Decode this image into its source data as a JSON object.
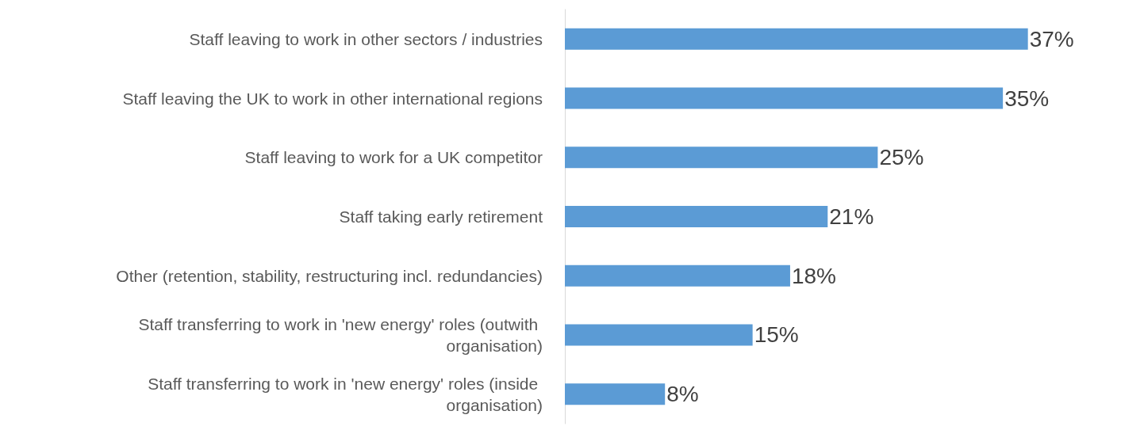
{
  "chart_data": {
    "type": "bar",
    "orientation": "horizontal",
    "categories": [
      "Staff leaving to work in other sectors / industries",
      "Staff leaving the UK to work in other international regions",
      "Staff leaving to work for a UK competitor",
      "Staff taking early retirement",
      "Other (retention, stability, restructuring incl. redundancies)",
      "Staff transferring to work in 'new energy' roles (outwith organisation)",
      "Staff transferring to work in 'new energy' roles (inside organisation)"
    ],
    "values": [
      37,
      35,
      25,
      21,
      18,
      15,
      8
    ],
    "value_labels": [
      "37%",
      "35%",
      "25%",
      "21%",
      "18%",
      "15%",
      "8%"
    ],
    "color": "#5b9bd5"
  }
}
